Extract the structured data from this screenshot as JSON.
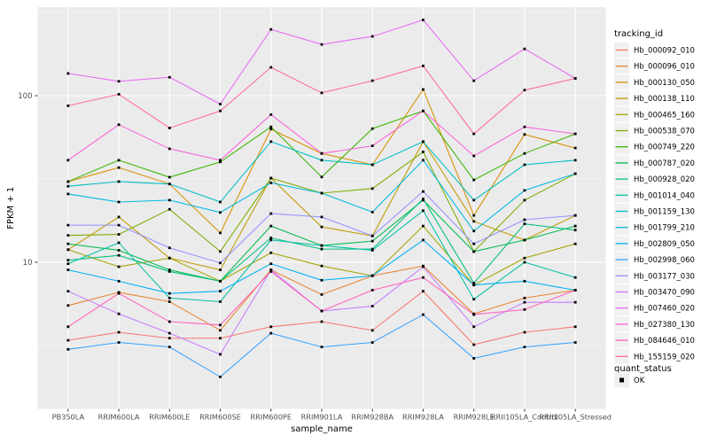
{
  "figure": {
    "background": "#FFFFFF",
    "panel_background": "#EBEBEB",
    "grid_major_color": "#FFFFFF",
    "grid_minor_color": "#F6F6F6",
    "tick_color": "#333333",
    "axis_text_color": "#4D4D4D",
    "title_text_color": "#000000",
    "legend_key_background": "#F0F0F0"
  },
  "legend": {
    "tracking_title": "tracking_id",
    "quant_title": "quant_status",
    "quant_items": [
      {
        "label": "OK",
        "marker": "black-filled-square"
      }
    ]
  },
  "chart_data": {
    "type": "line",
    "title": "",
    "xlabel": "sample_name",
    "ylabel": "FPKM + 1",
    "y_scale": "log10",
    "y_ticks": [
      100,
      10
    ],
    "y_tick_labels": [
      "100",
      "10"
    ],
    "y_minor_breaks": [
      316.2,
      31.62,
      3.162
    ],
    "ylim": [
      1.3,
      340
    ],
    "grid": true,
    "legend_position": "right",
    "point_shape": "filled-square",
    "point_color": "#000000",
    "categories": [
      "PB350LA",
      "RRIM600LA",
      "RRIM600LE",
      "RRIM600SE",
      "RRIM600PE",
      "RRIM901LA",
      "RRIM928BA",
      "RRIM928LA",
      "RRIM928LE",
      "RRII105LA_Control",
      "RRII105LA_Stressed"
    ],
    "series": [
      {
        "name": "Hb_000092_010",
        "color": "#F8766D",
        "values": [
          3.4,
          3.8,
          3.5,
          3.5,
          4.1,
          4.4,
          3.9,
          6.7,
          3.2,
          3.8,
          4.1
        ]
      },
      {
        "name": "Hb_000096_010",
        "color": "#EA8331",
        "values": [
          5.5,
          6.6,
          5.8,
          3.9,
          9.0,
          6.4,
          8.3,
          9.5,
          4.9,
          6.1,
          6.8
        ]
      },
      {
        "name": "Hb_000130_050",
        "color": "#D89000",
        "values": [
          30.5,
          37,
          29.5,
          15,
          63,
          45,
          38.5,
          109,
          19.1,
          58.5,
          48.5
        ]
      },
      {
        "name": "Hb_000138_110",
        "color": "#C09B00",
        "values": [
          11.9,
          18.7,
          10.6,
          9.0,
          32,
          16.3,
          14.4,
          53,
          17.6,
          13.6,
          19.1
        ]
      },
      {
        "name": "Hb_000465_160",
        "color": "#A3A500",
        "values": [
          11.9,
          9.4,
          10.6,
          7.7,
          11.4,
          9.5,
          8.3,
          16.5,
          7.3,
          10.6,
          12.9
        ]
      },
      {
        "name": "Hb_000538_070",
        "color": "#7CAE00",
        "values": [
          14.5,
          14.7,
          20.8,
          11.6,
          32,
          26,
          27.7,
          46,
          11.6,
          23.6,
          34
        ]
      },
      {
        "name": "Hb_000749_220",
        "color": "#39B600",
        "values": [
          30.5,
          41,
          32.4,
          40,
          65,
          32.5,
          63.4,
          81,
          31.2,
          45,
          59
        ]
      },
      {
        "name": "Hb_000787_020",
        "color": "#00BB4E",
        "values": [
          12.9,
          11.8,
          9.0,
          7.7,
          16.5,
          12.6,
          13.4,
          23.6,
          11.6,
          13.6,
          16.5
        ]
      },
      {
        "name": "Hb_000928_020",
        "color": "#00BF7D",
        "values": [
          10.3,
          11.0,
          8.8,
          7.7,
          14.0,
          12.0,
          12.0,
          24.0,
          7.5,
          17.0,
          15.6
        ]
      },
      {
        "name": "Hb_001014_040",
        "color": "#00C1A3",
        "values": [
          9.8,
          13.1,
          6.1,
          5.8,
          13.6,
          12.6,
          11.8,
          20.4,
          6.0,
          10.0,
          8.1
        ]
      },
      {
        "name": "Hb_001159_130",
        "color": "#00BFC4",
        "values": [
          28.6,
          30.5,
          29.5,
          23,
          53,
          41,
          38.5,
          53,
          23.6,
          38.5,
          41
        ]
      },
      {
        "name": "Hb_001799_210",
        "color": "#00BAE0",
        "values": [
          25.7,
          23,
          23.6,
          19.9,
          30,
          26,
          20,
          41,
          15.4,
          27,
          34
        ]
      },
      {
        "name": "Hb_002809_050",
        "color": "#00B0F6",
        "values": [
          9.0,
          7.7,
          6.5,
          6.7,
          9.8,
          7.8,
          8.3,
          13.6,
          7.3,
          7.7,
          6.8
        ]
      },
      {
        "name": "Hb_002998_060",
        "color": "#35A2FF",
        "values": [
          3.0,
          3.3,
          3.1,
          2.05,
          3.75,
          3.1,
          3.3,
          4.85,
          2.65,
          3.1,
          3.3
        ]
      },
      {
        "name": "Hb_003177_030",
        "color": "#9590FF",
        "values": [
          16.7,
          16.7,
          12.2,
          9.9,
          19.6,
          18.7,
          14.4,
          26.6,
          12.9,
          18.0,
          19.1
        ]
      },
      {
        "name": "Hb_003470_090",
        "color": "#C77CFF",
        "values": [
          6.7,
          4.9,
          3.75,
          2.8,
          9.0,
          5.1,
          5.45,
          9.4,
          4.1,
          5.75,
          5.75
        ]
      },
      {
        "name": "Hb_007460_020",
        "color": "#E76BF3",
        "values": [
          136,
          122,
          129,
          89,
          250,
          203,
          227,
          285,
          123,
          191,
          127
        ]
      },
      {
        "name": "Hb_027380_130",
        "color": "#FA62DB",
        "values": [
          41,
          67,
          48,
          41,
          77,
          45,
          50,
          81,
          43.5,
          65,
          59
        ]
      },
      {
        "name": "Hb_084646_010",
        "color": "#FF62BC",
        "values": [
          4.1,
          6.5,
          4.4,
          4.2,
          8.8,
          5.1,
          6.8,
          8.1,
          4.85,
          5.2,
          6.8
        ]
      },
      {
        "name": "Hb_155159_020",
        "color": "#FF6A98",
        "values": [
          87,
          102,
          64,
          81,
          148,
          104,
          123,
          151,
          59,
          108,
          127
        ]
      }
    ]
  }
}
